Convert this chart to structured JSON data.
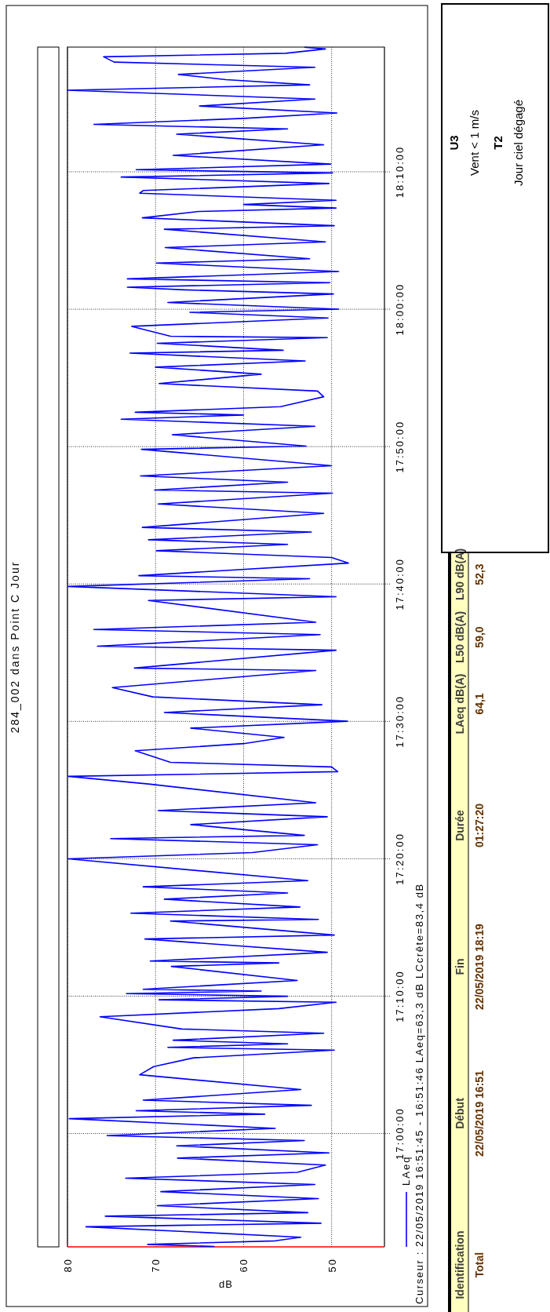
{
  "chart_data": {
    "type": "line",
    "title": "284_002 dans Point C Jour",
    "xlabel": "dB",
    "ylim": [
      16.8625,
      18.318
    ],
    "xlim": [
      80,
      44
    ],
    "yticks": [
      {
        "value": 17,
        "label": "17:00:00"
      },
      {
        "value": 17.16667,
        "label": "17:10:00"
      },
      {
        "value": 17.33333,
        "label": "17:20:00"
      },
      {
        "value": 17.5,
        "label": "17:30:00"
      },
      {
        "value": 17.66667,
        "label": "17:40:00"
      },
      {
        "value": 17.83333,
        "label": "17:50:00"
      },
      {
        "value": 18,
        "label": "18:00:00"
      },
      {
        "value": 18.16667,
        "label": "18:10:00"
      }
    ],
    "xticks": [
      80,
      70,
      60,
      50
    ],
    "grid": true,
    "legend": "bottom right",
    "annotations": [
      "Curseur : 22/05/2019 16:51:45 - 16:51:46  LAeq=63,3 dB  LCcrête=83,4 dB",
      "Identification",
      "Début",
      "Fin",
      "Durée",
      "LAeq dB(A)",
      "L50 dB(A)",
      "L90 dB(A)",
      "Total",
      "22/05/2019 16:51",
      "22/05/2019 18:19",
      "01:27:20",
      "64,1",
      "59,0",
      "52,3",
      "U3",
      "Vent  < 1 m/s",
      "T2",
      "Jour ciel dégagé"
    ],
    "series": [
      {
        "name": "LAeq",
        "color": "#0000ff",
        "values": [
          16.863,
          16.8655,
          16.8698,
          16.8742,
          16.8869,
          16.8912,
          16.8997,
          16.904,
          16.9125,
          16.921,
          16.9295,
          16.9382,
          16.9458,
          16.953,
          16.9617,
          16.9702,
          16.9765,
          16.985,
          16.9915,
          16.9975,
          17.0063,
          17.018,
          17.0235,
          17.0277,
          17.0342,
          17.0405,
          17.0533,
          17.0713,
          17.0812,
          17.0918,
          17.1012,
          17.1045,
          17.1088,
          17.1132,
          17.1217,
          17.1268,
          17.1417,
          17.1515,
          17.1592,
          17.1622,
          17.1665,
          17.1698,
          17.1728,
          17.175,
          17.1857,
          17.2027,
          17.207,
          17.2092,
          17.2198,
          17.236,
          17.2408,
          17.2578,
          17.2597,
          17.2673,
          17.2748,
          17.2843,
          17.2918,
          17.2993,
          17.3068,
          17.3333,
          17.3408,
          17.3503,
          17.3578,
          17.3617,
          17.3748,
          17.3843,
          17.3918,
          17.4013,
          17.424,
          17.4333,
          17.439,
          17.4447,
          17.4503,
          17.4643,
          17.473,
          17.4805,
          17.4918,
          17.5002,
          17.5108,
          17.5202,
          17.5297,
          17.541,
          17.5617,
          17.5647,
          17.5863,
          17.5912,
          17.6052,
          17.6115,
          17.6202,
          17.6467,
          17.6512,
          17.6637,
          17.673,
          17.6768,
          17.692,
          17.6988,
          17.707,
          17.7147,
          17.7203,
          17.7297,
          17.7353,
          17.7523,
          17.7637,
          17.7768,
          17.7807,
          17.7902,
          17.7977,
          17.8102,
          17.83,
          17.834,
          17.8477,
          17.858,
          17.8665,
          17.8717,
          17.875,
          17.8818,
          17.8938,
          17.9007,
          17.9098,
          17.9212,
          17.9297,
          17.9372,
          17.9467,
          17.9502,
          17.9587,
          17.9655,
          17.9672,
          17.9792,
          17.9893,
          17.9962,
          18.0,
          18.0082,
          18.0185,
          18.0235,
          18.0267,
          18.0322,
          18.0368,
          18.0458,
          18.056,
          18.0612,
          18.0748,
          18.0817,
          18.097,
          18.1013,
          18.1108,
          18.1185,
          18.1227,
          18.127,
          18.1322,
          18.1407,
          18.144,
          18.1525,
          18.1603,
          18.1653,
          18.1692,
          18.176,
          18.1867,
          18.1995,
          18.2123,
          18.2187,
          18.2243,
          18.2315,
          18.238,
          18.2465,
          18.255,
          18.2657,
          18.2722,
          18.2785,
          18.2848,
          18.2935,
          18.2998,
          18.3062,
          18.3105,
          18.3157,
          18.3178
        ],
        "x": [
          63.3,
          70.9,
          56.4,
          53.5,
          77.9,
          51.2,
          75.7,
          52.7,
          69.8,
          51.5,
          69.4,
          51.9,
          73.4,
          53.9,
          50.7,
          67.5,
          50.3,
          67.6,
          53.1,
          75.5,
          56.4,
          79.8,
          57.6,
          72.2,
          52.3,
          71.4,
          53.5,
          71.8,
          70.2,
          65.7,
          49.7,
          68.6,
          55.0,
          68.0,
          50.9,
          67.0,
          76.3,
          56.0,
          49.5,
          69.6,
          55.0,
          73.3,
          58.0,
          71.4,
          53.9,
          68.2,
          56.0,
          70.6,
          50.5,
          71.2,
          49.7,
          68.3,
          51.5,
          72.8,
          53.6,
          69.0,
          55.0,
          71.4,
          52.7,
          79.9,
          59.0,
          51.6,
          75.1,
          53.1,
          66.0,
          50.5,
          69.7,
          51.8,
          70.8,
          79.9,
          49.3,
          50.0,
          68.3,
          72.3,
          60.0,
          55.4,
          66.0,
          48.2,
          69.0,
          51.1,
          70.3,
          74.9,
          51.8,
          72.4,
          49.5,
          76.6,
          51.3,
          77.0,
          51.8,
          70.8,
          49.5,
          79.9,
          52.5,
          71.9,
          48.1,
          50.0,
          69.9,
          55.0,
          70.8,
          52.3,
          71.5,
          50.9,
          69.7,
          49.9,
          70.1,
          55.0,
          71.7,
          50.0,
          71.6,
          52.9,
          68.1,
          51.9,
          73.9,
          60.0,
          72.3,
          55.8,
          50.9,
          51.6,
          69.6,
          58.0,
          70.0,
          53.0,
          72.9,
          55.5,
          69.8,
          50.5,
          68.3,
          72.7,
          50.4,
          66.1,
          49.2,
          68.6,
          49.8,
          66.7,
          73.2,
          50.2,
          73.2,
          49.2,
          69.9,
          52.5,
          68.9,
          50.7,
          69.0,
          49.7,
          71.5,
          65.1,
          49.5,
          60.0,
          49.5,
          71.8,
          71.4,
          50.3,
          73.9,
          49.9,
          72.2,
          50.1,
          68.0,
          50.9,
          67.6,
          55.0,
          77.0,
          60.0,
          49.4,
          65.0,
          51.9,
          80.0,
          52.5,
          62.0,
          67.4,
          51.9,
          74.7,
          75.9,
          55.2,
          50.7,
          53.1
        ]
      }
    ]
  }
}
